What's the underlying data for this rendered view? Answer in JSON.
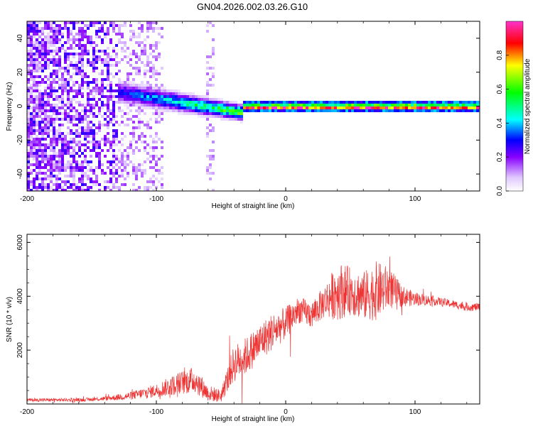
{
  "title": "GN04.2026.002.03.26.G10",
  "chart_data": [
    {
      "type": "heatmap",
      "title": "",
      "xlabel": "Height of straight line (km)",
      "ylabel": "Frequency (Hz)",
      "xlim": [
        -200,
        150
      ],
      "ylim": [
        -50,
        50
      ],
      "x_ticks": [
        -200,
        -100,
        0,
        100
      ],
      "y_ticks": [
        -40,
        -20,
        0,
        20,
        40
      ],
      "colorbar": {
        "label": "Normalized spectral amplitude",
        "range": [
          0.0,
          1.0
        ],
        "ticks": [
          0.0,
          0.2,
          0.4,
          0.6,
          0.8
        ],
        "tick_labels": [
          "0.0",
          "0.2",
          "0.4",
          "0.6",
          "0.8"
        ]
      },
      "description_points": [
        {
          "x": -120,
          "y": 8,
          "value": 0.25
        },
        {
          "x": -90,
          "y": 4,
          "value": 0.4
        },
        {
          "x": -60,
          "y": 0,
          "value": 0.55
        },
        {
          "x": -40,
          "y": -3,
          "value": 0.35
        },
        {
          "x": 0,
          "y": 0,
          "value": 0.9
        },
        {
          "x": 50,
          "y": 0,
          "value": 0.95
        },
        {
          "x": 100,
          "y": 0,
          "value": 0.95
        },
        {
          "x": 150,
          "y": 0,
          "value": 0.95
        }
      ]
    },
    {
      "type": "line",
      "title": "",
      "xlabel": "Height of straight line (km)",
      "ylabel": "SNR (10 * v/v)",
      "xlim": [
        -200,
        150
      ],
      "ylim": [
        0,
        6300
      ],
      "x_ticks": [
        -200,
        -100,
        0,
        100
      ],
      "y_ticks": [
        2000,
        4000,
        6000
      ],
      "series": [
        {
          "name": "SNR",
          "color": "#ee3333",
          "x": [
            -200,
            -180,
            -160,
            -140,
            -120,
            -100,
            -80,
            -70,
            -60,
            -50,
            -40,
            -30,
            -20,
            -10,
            0,
            10,
            20,
            30,
            40,
            50,
            60,
            70,
            80,
            90,
            100,
            110,
            120,
            130,
            140,
            150
          ],
          "y": [
            150,
            150,
            150,
            200,
            300,
            500,
            800,
            900,
            400,
            300,
            1500,
            1800,
            2300,
            2700,
            3000,
            3500,
            3300,
            3800,
            4200,
            4200,
            4000,
            4200,
            4300,
            4000,
            3900,
            3850,
            3800,
            3700,
            3600,
            3600
          ],
          "noise_amplitude": [
            60,
            60,
            60,
            80,
            150,
            250,
            450,
            500,
            300,
            250,
            700,
            700,
            700,
            700,
            600,
            500,
            500,
            600,
            1100,
            900,
            900,
            1100,
            800,
            400,
            250,
            200,
            150,
            150,
            150,
            150
          ]
        }
      ]
    }
  ],
  "colors": {
    "line": "#ee3333",
    "background": "#ffffff"
  }
}
